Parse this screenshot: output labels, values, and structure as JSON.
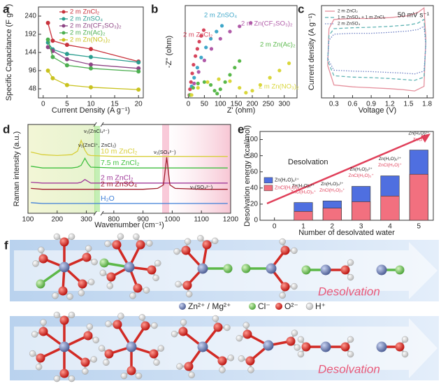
{
  "chart_data": [
    {
      "panel": "a",
      "type": "line",
      "markers": true,
      "legend": "upper right",
      "xlabel": "Current Density (A g⁻¹)",
      "ylabel": "Specific Capacitance (F g⁻¹)",
      "x": [
        1,
        2,
        5,
        10,
        20
      ],
      "xlim": [
        -1,
        21
      ],
      "xticks": [
        0,
        5,
        10,
        15,
        20
      ],
      "ylim": [
        24,
        264
      ],
      "yticks": [
        48,
        96,
        144,
        192,
        240
      ],
      "series": [
        {
          "name": "2 m ZnCl₂",
          "color": "#c8323c",
          "values": [
            222,
            175,
            164,
            153,
            120
          ]
        },
        {
          "name": "2 m ZnSO₄",
          "color": "#2a9d8f",
          "values": [
            170,
            152,
            140,
            132,
            118
          ]
        },
        {
          "name": "2 m Zn(CF₃SO₃)₂",
          "color": "#8e4585",
          "values": [
            158,
            148,
            126,
            112,
            102
          ]
        },
        {
          "name": "2 m Zn(Ac)₂",
          "color": "#4caf50",
          "values": [
            178,
            132,
            110,
            102,
            94
          ]
        },
        {
          "name": "2 m Zn(NO₃)₂",
          "color": "#c9c21e",
          "values": [
            96,
            76,
            58,
            52,
            46
          ]
        }
      ]
    },
    {
      "panel": "b",
      "type": "scatter",
      "legend": "inline",
      "xlabel": "Z' (ohm)",
      "ylabel": "-Z'' (ohm)",
      "xlim": [
        -10,
        340
      ],
      "xticks": [
        0,
        50,
        100,
        150,
        200,
        250,
        300
      ],
      "ylim": [
        -10,
        310
      ],
      "series": [
        {
          "name": "2 m ZnCl₂",
          "color": "#d6455c",
          "x": [
            3,
            5,
            8,
            12,
            16,
            22,
            28,
            34,
            40,
            48
          ],
          "values": [
            0,
            20,
            45,
            75,
            105,
            135,
            160,
            185,
            205,
            225
          ]
        },
        {
          "name": "2 m ZnSO₄",
          "color": "#3fa7c9",
          "x": [
            5,
            10,
            18,
            28,
            40,
            55,
            70,
            88,
            105
          ],
          "values": [
            0,
            30,
            60,
            95,
            130,
            165,
            195,
            220,
            240
          ]
        },
        {
          "name": "2 m Zn(CF₃SO₃)₂",
          "color": "#b05aa8",
          "x": [
            8,
            18,
            32,
            50,
            72,
            100,
            130,
            160,
            195
          ],
          "values": [
            0,
            40,
            80,
            120,
            160,
            195,
            220,
            238,
            250
          ]
        },
        {
          "name": "2 m Zn(Ac)₂",
          "color": "#59b84a",
          "x": [
            5,
            15,
            30,
            50,
            70,
            82,
            90,
            100,
            115,
            130,
            145,
            160
          ],
          "values": [
            0,
            25,
            40,
            45,
            35,
            15,
            5,
            20,
            45,
            70,
            95,
            118
          ]
        },
        {
          "name": "2 m Zn(NO₃)₂",
          "color": "#d9d63a",
          "x": [
            10,
            30,
            60,
            95,
            130,
            160,
            180,
            200,
            225,
            255,
            285,
            315
          ],
          "values": [
            0,
            25,
            45,
            55,
            48,
            25,
            8,
            15,
            35,
            60,
            85,
            110
          ]
        }
      ]
    },
    {
      "panel": "c",
      "type": "line",
      "markers": false,
      "legend": "upper left",
      "annotation": "50 mV s⁻¹",
      "xlabel": "Voltage (V)",
      "ylabel": "Current density (A g⁻¹)",
      "x": [
        0.2,
        0.22,
        0.3,
        0.6,
        0.9,
        1.2,
        1.5,
        1.65,
        1.75,
        1.78,
        1.75,
        1.6,
        1.4,
        1.2,
        0.9,
        0.6,
        0.3,
        0.2
      ],
      "xlim": [
        0.1,
        1.9
      ],
      "xticks": [
        0.3,
        0.6,
        0.9,
        1.2,
        1.5,
        1.8
      ],
      "ylim": [
        -1,
        1
      ],
      "series": [
        {
          "name": "2 m ZnCl₂",
          "color": "#e58f9c",
          "dash": "solid",
          "values": [
            -0.3,
            0.5,
            0.7,
            0.72,
            0.72,
            0.74,
            0.78,
            0.85,
            0.95,
            0.3,
            -0.75,
            -0.85,
            -0.82,
            -0.8,
            -0.78,
            -0.76,
            -0.72,
            -0.3
          ]
        },
        {
          "name": "1 m ZnSO₄ + 1 m ZnCl₂",
          "color": "#5fb3b3",
          "dash": "dashed",
          "values": [
            -0.2,
            0.35,
            0.5,
            0.52,
            0.53,
            0.55,
            0.58,
            0.62,
            0.7,
            0.2,
            -0.55,
            -0.62,
            -0.6,
            -0.58,
            -0.56,
            -0.55,
            -0.52,
            -0.2
          ]
        },
        {
          "name": "2 m ZnSO₄",
          "color": "#6d7fc4",
          "dash": "dotted",
          "values": [
            -0.15,
            0.25,
            0.38,
            0.4,
            0.4,
            0.42,
            0.45,
            0.48,
            0.55,
            0.15,
            -0.42,
            -0.48,
            -0.46,
            -0.45,
            -0.43,
            -0.42,
            -0.4,
            -0.15
          ]
        }
      ]
    },
    {
      "panel": "d",
      "type": "line",
      "markers": false,
      "legend": "inline",
      "xlabel": "Wavenumber (cm⁻¹)",
      "ylabel": "Raman intensity (a.u.)",
      "annotations": [
        "ν₁(ZnCl₄²⁻)",
        "ν₁(ZnCl⁺, ZnCl₂)",
        "ν₁(SO₄²⁻)",
        "ν₃(SO₄²⁻)"
      ],
      "x": [
        110,
        150,
        200,
        250,
        270,
        282,
        295,
        305,
        315,
        800,
        900,
        950,
        970,
        981,
        992,
        1010,
        1100,
        1190
      ],
      "xlim": [
        100,
        1200
      ],
      "xbreak": [
        330,
        760
      ],
      "xticks": [
        100,
        200,
        300,
        800,
        900,
        1000,
        1100,
        1200
      ],
      "ylim": [
        0,
        10
      ],
      "series": [
        {
          "name": "10 m ZnCl₂",
          "color": "#d8cf3a",
          "values": [
            6.9,
            6.6,
            6.5,
            6.6,
            7.0,
            8.2,
            7.1,
            6.6,
            6.5,
            6.4,
            6.4,
            6.4,
            6.4,
            6.4,
            6.4,
            6.4,
            6.4,
            6.4
          ]
        },
        {
          "name": "7.5 m ZnCl₂",
          "color": "#3fbf3f",
          "values": [
            5.3,
            5.1,
            5.1,
            5.1,
            5.2,
            5.4,
            6.2,
            5.6,
            5.2,
            5.1,
            5.1,
            5.1,
            5.1,
            5.1,
            5.1,
            5.1,
            5.1,
            5.1
          ]
        },
        {
          "name": "2 m ZnCl₂",
          "color": "#a03a9a",
          "values": [
            3.5,
            3.4,
            3.4,
            3.4,
            3.4,
            3.5,
            3.8,
            3.6,
            3.4,
            3.4,
            3.4,
            3.4,
            3.4,
            3.4,
            3.4,
            3.4,
            3.4,
            3.4
          ]
        },
        {
          "name": "2 m ZnSO₄",
          "color": "#a01c2c",
          "values": [
            2.8,
            2.7,
            2.7,
            2.7,
            2.7,
            2.7,
            2.7,
            2.7,
            2.7,
            2.7,
            2.7,
            2.8,
            3.2,
            6.3,
            3.2,
            2.8,
            2.7,
            2.7
          ]
        },
        {
          "name": "H₂O",
          "color": "#3f7fd8",
          "values": [
            1.2,
            1.1,
            1.1,
            1.1,
            1.1,
            1.1,
            1.1,
            1.1,
            1.1,
            1.1,
            1.1,
            1.1,
            1.1,
            1.1,
            1.1,
            1.1,
            1.1,
            1.1
          ]
        }
      ]
    },
    {
      "panel": "e",
      "type": "bar",
      "legend": "center left",
      "title": "Desolvation",
      "xlabel": "Number of desolvated water",
      "ylabel": "Desolvation energy (kcal/mol)",
      "categories": [
        "0",
        "1",
        "2",
        "3",
        "4",
        "5"
      ],
      "ylim": [
        0,
        110
      ],
      "yticks": [
        0,
        20,
        40,
        60,
        80,
        100
      ],
      "series": [
        {
          "name": "Zn(H₂O)₆²⁺",
          "color": "#4f6fe0",
          "values": [
            null,
            22,
            24,
            42,
            55,
            87
          ]
        },
        {
          "name": "ZnCl(H₂O)₅⁺",
          "color": "#f2707f",
          "values": [
            null,
            11,
            15,
            23,
            30,
            57
          ]
        }
      ],
      "bar_labels": [
        null,
        [
          "Zn(H₂O)₅²⁺",
          "ZnCl(H₂O)₄⁺"
        ],
        [
          "Zn(H₂O)₄²⁺",
          "ZnCl(H₂O)₃⁺"
        ],
        [
          "Zn(H₂O)₃²⁺",
          "ZnCl(H₂O)₂⁺"
        ],
        [
          "Zn(H₂O)₂²⁺",
          "ZnCl(H₂O)⁺"
        ],
        [
          "Zn(H₂O)²⁺",
          "ZnCl⁺"
        ]
      ]
    }
  ],
  "diagram": {
    "panel": "f",
    "legend": [
      "Zn²⁺ / Mg²⁺",
      "Cl⁻",
      "O²⁻",
      "H⁺"
    ],
    "arrow_labels": [
      "Desolvation",
      "Desolvation"
    ]
  }
}
